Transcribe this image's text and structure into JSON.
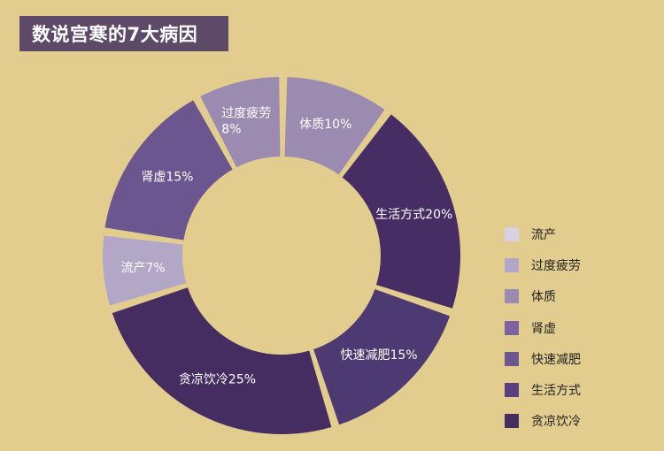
{
  "title": "数说宫寒的7大病因",
  "chart_data": {
    "type": "pie",
    "donut": true,
    "title": "数说宫寒的7大病因",
    "slices": [
      {
        "name": "体质",
        "value": 10,
        "label": "体质10%",
        "color": "#9b8bb1"
      },
      {
        "name": "生活方式",
        "value": 20,
        "label": "生活方式20%",
        "color": "#462d64"
      },
      {
        "name": "快速减肥",
        "value": 15,
        "label": "快速减肥15%",
        "color": "#4d3a72"
      },
      {
        "name": "贪凉饮冷",
        "value": 25,
        "label": "贪凉饮冷25%",
        "color": "#452d62"
      },
      {
        "name": "流产",
        "value": 7,
        "label": "流产7%",
        "color": "#b3a7c8"
      },
      {
        "name": "肾虚",
        "value": 15,
        "label": "肾虚15%",
        "color": "#6b5690"
      },
      {
        "name": "过度疲劳",
        "value": 8,
        "label": "过度疲劳\n8%",
        "color": "#9b8bb1"
      }
    ],
    "legend": {
      "placement": "right",
      "items": [
        {
          "name": "流产",
          "color": "#d9d0e3"
        },
        {
          "name": "过度疲劳",
          "color": "#b3a7c8"
        },
        {
          "name": "体质",
          "color": "#9b8bb1"
        },
        {
          "name": "肾虚",
          "color": "#7b62a2"
        },
        {
          "name": "快速减肥",
          "color": "#6b5690"
        },
        {
          "name": "生活方式",
          "color": "#5a4080"
        },
        {
          "name": "贪凉饮冷",
          "color": "#452d62"
        }
      ]
    }
  }
}
